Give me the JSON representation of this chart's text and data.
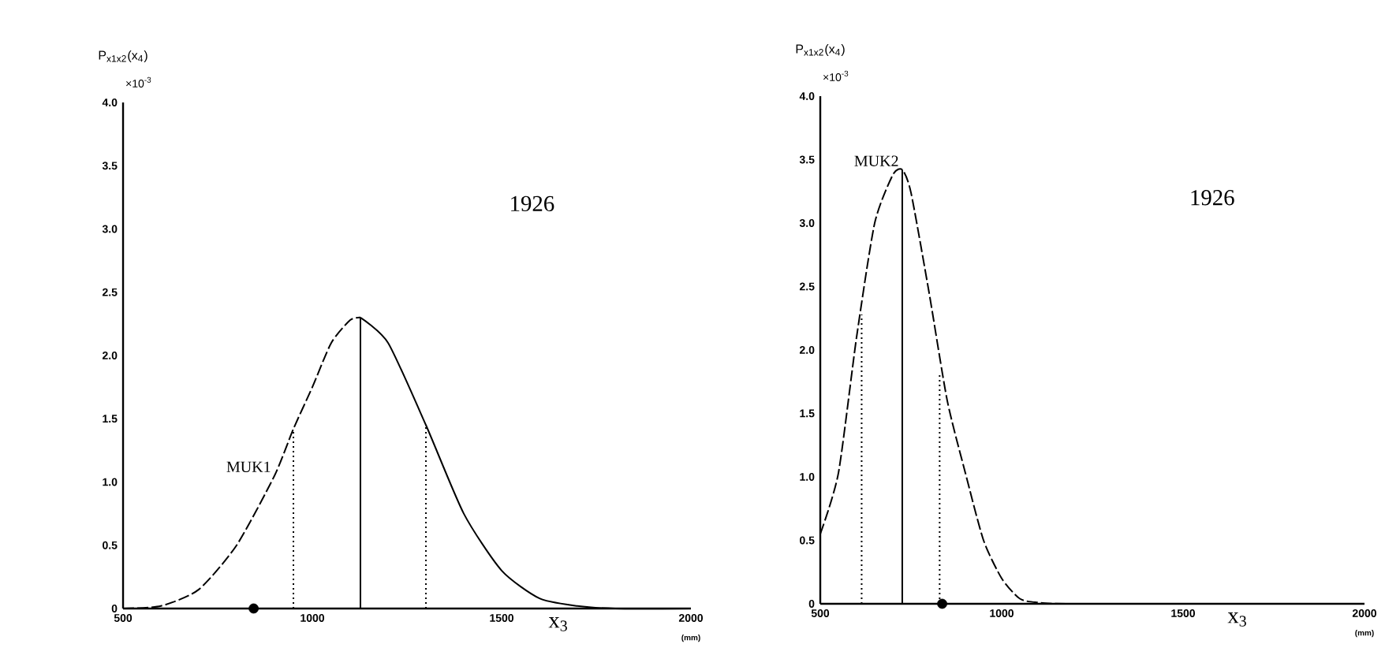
{
  "chart_data": [
    {
      "type": "line",
      "ylabel": "P$_{x1x2}$(x$_{4}$)",
      "xlabel": "x$_{3}$",
      "xlim": [
        500,
        2000
      ],
      "ylim": [
        0,
        4.0
      ],
      "xticks": [
        500,
        1000,
        1500,
        2000
      ],
      "yticks": [
        {
          "value": 0,
          "label": "0"
        },
        {
          "value": 0.5,
          "label": "0.5"
        },
        {
          "value": 1,
          "label": "1.0"
        },
        {
          "value": 1.5,
          "label": "1.5"
        },
        {
          "value": 2,
          "label": "2.0"
        },
        {
          "value": 2.5,
          "label": "2.5"
        },
        {
          "value": 3,
          "label": "3.0"
        },
        {
          "value": 3.5,
          "label": "3.5"
        },
        {
          "value": 4,
          "label": "4.0"
        }
      ],
      "series": [
        {
          "color": "#000000",
          "line_style": "dashed",
          "x": [
            500,
            600,
            700,
            800,
            900,
            950,
            1000,
            1050,
            1100,
            1127
          ],
          "values": [
            0,
            0.02,
            0.15,
            0.5,
            1.05,
            1.42,
            1.75,
            2.1,
            2.28,
            2.3
          ]
        },
        {
          "color": "#000000",
          "line_style": "solid",
          "x": [
            1127,
            1200,
            1300,
            1400,
            1500,
            1600,
            1700,
            1800,
            2000
          ],
          "values": [
            2.3,
            2.1,
            1.45,
            0.75,
            0.3,
            0.08,
            0.02,
            0,
            0
          ]
        },
        {
          "color": "#000000",
          "line_style": "solid",
          "x": [
            1127,
            1127
          ],
          "values": [
            0,
            2.3
          ]
        },
        {
          "color": "#000000",
          "line_style": "dotted",
          "x": [
            950,
            950
          ],
          "values": [
            0,
            1.42
          ]
        },
        {
          "color": "#000000",
          "line_style": "dotted",
          "x": [
            1300,
            1300
          ],
          "values": [
            0,
            1.45
          ]
        },
        {
          "color": "#000000",
          "type": "scatter",
          "marker": "circle",
          "x": [
            845
          ],
          "values": [
            0
          ]
        }
      ],
      "annotations": [
        "×10$^{-3}$",
        "1926",
        "(mm)",
        {
          "text": "MUK1",
          "x": 900,
          "y": 1.05
        }
      ]
    },
    {
      "type": "line",
      "ylabel": "P$_{x1x2}$(x$_{4}$)",
      "xlabel": "x$_{3}$",
      "xlim": [
        500,
        2000
      ],
      "ylim": [
        0,
        4.0
      ],
      "xticks": [
        500,
        1000,
        1500,
        2000
      ],
      "yticks": [
        {
          "value": 0,
          "label": "0"
        },
        {
          "value": 0.5,
          "label": "0.5"
        },
        {
          "value": 1,
          "label": "1.0"
        },
        {
          "value": 1.5,
          "label": "1.5"
        },
        {
          "value": 2,
          "label": "2.0"
        },
        {
          "value": 2.5,
          "label": "2.5"
        },
        {
          "value": 3,
          "label": "3.0"
        },
        {
          "value": 3.5,
          "label": "3.5"
        },
        {
          "value": 4,
          "label": "4.0"
        }
      ],
      "series": [
        {
          "color": "#000000",
          "line_style": "dashed",
          "x": [
            500,
            550,
            600,
            650,
            700,
            726,
            750,
            800,
            850,
            900,
            950,
            1000,
            1050,
            1100,
            1200,
            2000
          ],
          "values": [
            0.55,
            1.03,
            2.1,
            3.0,
            3.38,
            3.42,
            3.24,
            2.45,
            1.6,
            1.03,
            0.5,
            0.2,
            0.04,
            0.01,
            0,
            0
          ]
        },
        {
          "color": "#000000",
          "line_style": "solid",
          "x": [
            726,
            726
          ],
          "values": [
            0,
            3.42
          ]
        },
        {
          "color": "#000000",
          "line_style": "dotted",
          "x": [
            614,
            614
          ],
          "values": [
            0,
            2.28
          ]
        },
        {
          "color": "#000000",
          "line_style": "dotted",
          "x": [
            829,
            829
          ],
          "values": [
            0,
            1.82
          ]
        },
        {
          "color": "#000000",
          "type": "scatter",
          "marker": "circle",
          "x": [
            836
          ],
          "values": [
            0
          ]
        }
      ],
      "annotations": [
        "×10$^{-3}$",
        "1926",
        "(mm)",
        {
          "text": "MUK2",
          "x": 726,
          "y": 3.42
        }
      ]
    }
  ]
}
